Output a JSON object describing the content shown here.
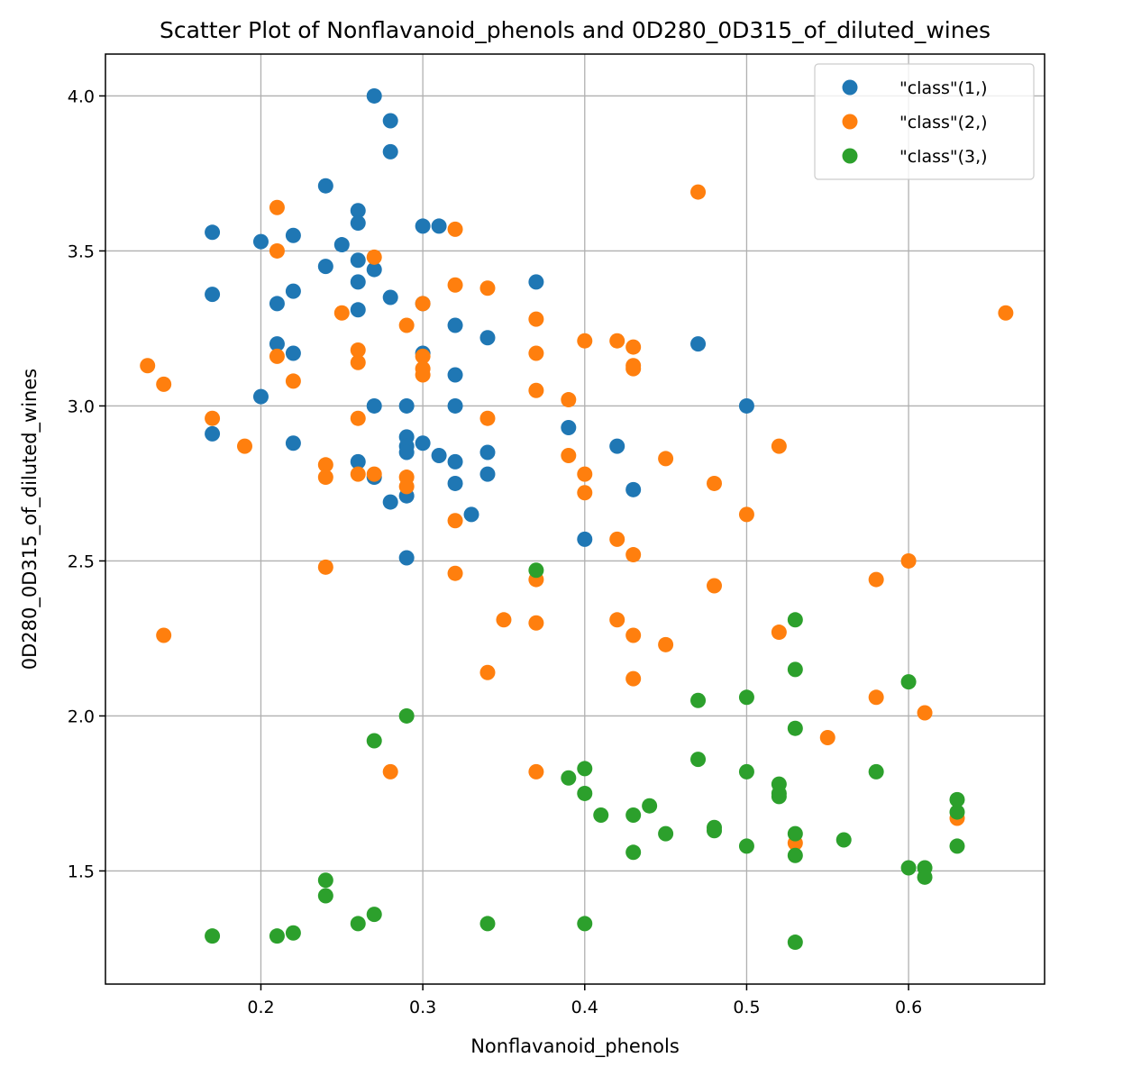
{
  "chart_data": {
    "type": "scatter",
    "title": "Scatter Plot of Nonflavanoid_phenols and 0D280_0D315_of_diluted_wines",
    "xlabel": "Nonflavanoid_phenols",
    "ylabel": "0D280_0D315_of_diluted_wines",
    "xlim": [
      0.104,
      0.684
    ],
    "ylim": [
      1.135,
      4.135
    ],
    "xticks": [
      0.2,
      0.3,
      0.4,
      0.5,
      0.6
    ],
    "yticks": [
      1.5,
      2.0,
      2.5,
      3.0,
      3.5,
      4.0
    ],
    "grid": true,
    "legend_position": "top-right",
    "series": [
      {
        "name": "\"class\"(1,)",
        "color": "#1f77b4",
        "points": [
          [
            0.27,
            4.0
          ],
          [
            0.28,
            3.92
          ],
          [
            0.28,
            3.82
          ],
          [
            0.24,
            3.71
          ],
          [
            0.26,
            3.63
          ],
          [
            0.26,
            3.59
          ],
          [
            0.17,
            3.56
          ],
          [
            0.2,
            3.53
          ],
          [
            0.22,
            3.55
          ],
          [
            0.25,
            3.52
          ],
          [
            0.3,
            3.58
          ],
          [
            0.31,
            3.58
          ],
          [
            0.26,
            3.47
          ],
          [
            0.24,
            3.45
          ],
          [
            0.27,
            3.44
          ],
          [
            0.26,
            3.4
          ],
          [
            0.37,
            3.4
          ],
          [
            0.17,
            3.36
          ],
          [
            0.22,
            3.37
          ],
          [
            0.28,
            3.35
          ],
          [
            0.21,
            3.33
          ],
          [
            0.26,
            3.31
          ],
          [
            0.3,
            3.33
          ],
          [
            0.32,
            3.26
          ],
          [
            0.34,
            3.22
          ],
          [
            0.21,
            3.2
          ],
          [
            0.22,
            3.17
          ],
          [
            0.3,
            3.17
          ],
          [
            0.47,
            3.2
          ],
          [
            0.32,
            3.1
          ],
          [
            0.2,
            3.03
          ],
          [
            0.27,
            3.0
          ],
          [
            0.29,
            3.0
          ],
          [
            0.32,
            3.0
          ],
          [
            0.5,
            3.0
          ],
          [
            0.39,
            2.93
          ],
          [
            0.17,
            2.91
          ],
          [
            0.29,
            2.9
          ],
          [
            0.22,
            2.88
          ],
          [
            0.29,
            2.87
          ],
          [
            0.3,
            2.88
          ],
          [
            0.42,
            2.87
          ],
          [
            0.29,
            2.85
          ],
          [
            0.31,
            2.84
          ],
          [
            0.34,
            2.85
          ],
          [
            0.26,
            2.82
          ],
          [
            0.32,
            2.82
          ],
          [
            0.27,
            2.77
          ],
          [
            0.34,
            2.78
          ],
          [
            0.32,
            2.75
          ],
          [
            0.43,
            2.73
          ],
          [
            0.29,
            2.71
          ],
          [
            0.28,
            2.69
          ],
          [
            0.33,
            2.65
          ],
          [
            0.4,
            2.57
          ],
          [
            0.29,
            2.51
          ]
        ]
      },
      {
        "name": "\"class\"(2,)",
        "color": "#ff7f0e",
        "points": [
          [
            0.47,
            3.69
          ],
          [
            0.21,
            3.64
          ],
          [
            0.32,
            3.57
          ],
          [
            0.21,
            3.5
          ],
          [
            0.27,
            3.48
          ],
          [
            0.32,
            3.39
          ],
          [
            0.34,
            3.38
          ],
          [
            0.3,
            3.33
          ],
          [
            0.25,
            3.3
          ],
          [
            0.66,
            3.3
          ],
          [
            0.37,
            3.28
          ],
          [
            0.29,
            3.26
          ],
          [
            0.4,
            3.21
          ],
          [
            0.42,
            3.21
          ],
          [
            0.43,
            3.19
          ],
          [
            0.26,
            3.18
          ],
          [
            0.37,
            3.17
          ],
          [
            0.21,
            3.16
          ],
          [
            0.3,
            3.16
          ],
          [
            0.13,
            3.13
          ],
          [
            0.26,
            3.14
          ],
          [
            0.43,
            3.13
          ],
          [
            0.3,
            3.12
          ],
          [
            0.43,
            3.12
          ],
          [
            0.3,
            3.1
          ],
          [
            0.14,
            3.07
          ],
          [
            0.22,
            3.08
          ],
          [
            0.37,
            3.05
          ],
          [
            0.39,
            3.02
          ],
          [
            0.17,
            2.96
          ],
          [
            0.26,
            2.96
          ],
          [
            0.34,
            2.96
          ],
          [
            0.19,
            2.87
          ],
          [
            0.52,
            2.87
          ],
          [
            0.39,
            2.84
          ],
          [
            0.45,
            2.83
          ],
          [
            0.24,
            2.81
          ],
          [
            0.26,
            2.78
          ],
          [
            0.27,
            2.78
          ],
          [
            0.4,
            2.78
          ],
          [
            0.24,
            2.77
          ],
          [
            0.29,
            2.77
          ],
          [
            0.48,
            2.75
          ],
          [
            0.29,
            2.74
          ],
          [
            0.4,
            2.72
          ],
          [
            0.5,
            2.65
          ],
          [
            0.32,
            2.63
          ],
          [
            0.42,
            2.57
          ],
          [
            0.43,
            2.52
          ],
          [
            0.6,
            2.5
          ],
          [
            0.24,
            2.48
          ],
          [
            0.32,
            2.46
          ],
          [
            0.37,
            2.44
          ],
          [
            0.58,
            2.44
          ],
          [
            0.48,
            2.42
          ],
          [
            0.35,
            2.31
          ],
          [
            0.42,
            2.31
          ],
          [
            0.37,
            2.3
          ],
          [
            0.52,
            2.27
          ],
          [
            0.14,
            2.26
          ],
          [
            0.43,
            2.26
          ],
          [
            0.45,
            2.23
          ],
          [
            0.34,
            2.14
          ],
          [
            0.43,
            2.12
          ],
          [
            0.58,
            2.06
          ],
          [
            0.61,
            2.01
          ],
          [
            0.55,
            1.93
          ],
          [
            0.28,
            1.82
          ],
          [
            0.37,
            1.82
          ],
          [
            0.63,
            1.67
          ],
          [
            0.53,
            1.59
          ]
        ]
      },
      {
        "name": "\"class\"(3,)",
        "color": "#2ca02c",
        "points": [
          [
            0.37,
            2.47
          ],
          [
            0.53,
            2.31
          ],
          [
            0.53,
            2.15
          ],
          [
            0.6,
            2.11
          ],
          [
            0.5,
            2.06
          ],
          [
            0.47,
            2.05
          ],
          [
            0.29,
            2.0
          ],
          [
            0.53,
            1.96
          ],
          [
            0.27,
            1.92
          ],
          [
            0.47,
            1.86
          ],
          [
            0.4,
            1.83
          ],
          [
            0.5,
            1.82
          ],
          [
            0.58,
            1.82
          ],
          [
            0.39,
            1.8
          ],
          [
            0.52,
            1.78
          ],
          [
            0.4,
            1.75
          ],
          [
            0.52,
            1.75
          ],
          [
            0.52,
            1.74
          ],
          [
            0.63,
            1.73
          ],
          [
            0.44,
            1.71
          ],
          [
            0.63,
            1.69
          ],
          [
            0.41,
            1.68
          ],
          [
            0.43,
            1.68
          ],
          [
            0.48,
            1.64
          ],
          [
            0.48,
            1.63
          ],
          [
            0.45,
            1.62
          ],
          [
            0.53,
            1.62
          ],
          [
            0.56,
            1.6
          ],
          [
            0.5,
            1.58
          ],
          [
            0.63,
            1.58
          ],
          [
            0.43,
            1.56
          ],
          [
            0.53,
            1.55
          ],
          [
            0.6,
            1.51
          ],
          [
            0.61,
            1.51
          ],
          [
            0.61,
            1.48
          ],
          [
            0.24,
            1.47
          ],
          [
            0.24,
            1.42
          ],
          [
            0.27,
            1.36
          ],
          [
            0.26,
            1.33
          ],
          [
            0.34,
            1.33
          ],
          [
            0.4,
            1.33
          ],
          [
            0.22,
            1.3
          ],
          [
            0.17,
            1.29
          ],
          [
            0.21,
            1.29
          ],
          [
            0.53,
            1.27
          ]
        ]
      }
    ]
  }
}
